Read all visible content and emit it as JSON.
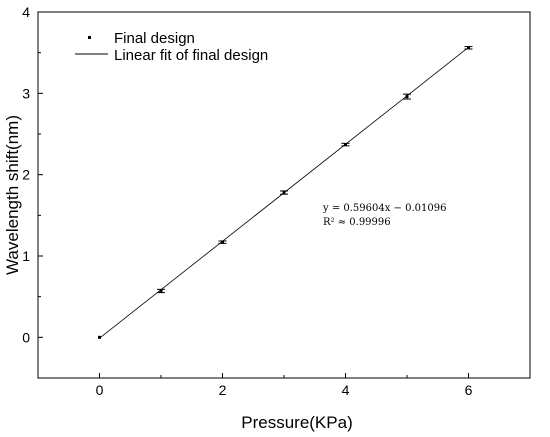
{
  "chart_data": {
    "type": "scatter",
    "xlabel": "Pressure(KPa)",
    "ylabel": "Wavelength shift(nm)",
    "xlim": [
      -1,
      7
    ],
    "ylim": [
      -0.5,
      4
    ],
    "x_ticks": [
      "0",
      "2",
      "4",
      "6"
    ],
    "y_ticks": [
      "0",
      "1",
      "2",
      "3",
      "4"
    ],
    "grid": false,
    "legend_position": "top-left",
    "series": [
      {
        "name": "Final design",
        "kind": "points-with-error-bars",
        "x": [
          0,
          1,
          2,
          3,
          4,
          5,
          6
        ],
        "y": [
          0.0,
          0.57,
          1.17,
          1.78,
          2.37,
          2.96,
          3.56
        ],
        "error": [
          0.0,
          0.02,
          0.015,
          0.02,
          0.015,
          0.03,
          0.015
        ]
      },
      {
        "name": "Linear fit of final design",
        "kind": "line",
        "slope": 0.59604,
        "intercept": -0.01096,
        "x_range": [
          0,
          6
        ]
      }
    ],
    "annotations": {
      "equation": "y = 0.59604x − 0.01096",
      "r_squared": "R² ≈ 0.99996"
    },
    "colors": {
      "axis": "#000000",
      "series": "#000000"
    }
  }
}
